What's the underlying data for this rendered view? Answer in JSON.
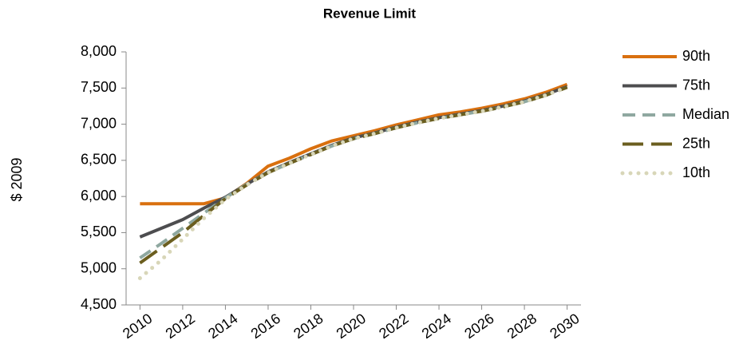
{
  "chart_data": {
    "type": "line",
    "title": "Revenue Limit",
    "y_label": "$ 2009",
    "x": [
      2010,
      2011,
      2012,
      2013,
      2014,
      2015,
      2016,
      2017,
      2018,
      2019,
      2020,
      2021,
      2022,
      2023,
      2024,
      2025,
      2026,
      2027,
      2028,
      2029,
      2030
    ],
    "xlim": [
      2009.35,
      2030.65
    ],
    "xticks": [
      2010,
      2012,
      2014,
      2016,
      2018,
      2020,
      2022,
      2024,
      2026,
      2028,
      2030
    ],
    "ylim": [
      4500,
      8000
    ],
    "yticks": [
      {
        "value": 4500,
        "label": "4,500"
      },
      {
        "value": 5000,
        "label": "5,000"
      },
      {
        "value": 5500,
        "label": "5,500"
      },
      {
        "value": 6000,
        "label": "6,000"
      },
      {
        "value": 6500,
        "label": "6,500"
      },
      {
        "value": 7000,
        "label": "7,000"
      },
      {
        "value": 7500,
        "label": "7,500"
      },
      {
        "value": 8000,
        "label": "8,000"
      }
    ],
    "legend": "right",
    "series": [
      {
        "name": "90th",
        "color": "#d9700f",
        "dash": "solid",
        "values": [
          5900,
          5900,
          5900,
          5900,
          5980,
          6180,
          6420,
          6530,
          6660,
          6770,
          6840,
          6910,
          6990,
          7060,
          7130,
          7170,
          7220,
          7280,
          7350,
          7440,
          7550
        ]
      },
      {
        "name": "75th",
        "color": "#4d4d4f",
        "dash": "solid",
        "values": [
          5440,
          5560,
          5680,
          5840,
          5990,
          6170,
          6340,
          6470,
          6590,
          6710,
          6810,
          6880,
          6960,
          7030,
          7090,
          7140,
          7190,
          7250,
          7320,
          7410,
          7520
        ]
      },
      {
        "name": "Median",
        "color": "#8fa8a0",
        "dash": "dashed",
        "values": [
          5150,
          5350,
          5560,
          5770,
          5980,
          6170,
          6330,
          6460,
          6580,
          6700,
          6800,
          6870,
          6950,
          7020,
          7080,
          7130,
          7180,
          7240,
          7310,
          7400,
          7510
        ]
      },
      {
        "name": "25th",
        "color": "#6b5e1f",
        "dash": "longdash",
        "values": [
          5080,
          5290,
          5500,
          5740,
          5970,
          6160,
          6330,
          6460,
          6580,
          6700,
          6800,
          6870,
          6950,
          7020,
          7080,
          7130,
          7180,
          7240,
          7310,
          7400,
          7510
        ]
      },
      {
        "name": "10th",
        "color": "#d8d6b8",
        "dash": "dotted",
        "values": [
          4870,
          5120,
          5410,
          5700,
          5960,
          6160,
          6330,
          6460,
          6580,
          6700,
          6800,
          6870,
          6950,
          7020,
          7080,
          7130,
          7180,
          7240,
          7310,
          7400,
          7510
        ]
      }
    ]
  }
}
